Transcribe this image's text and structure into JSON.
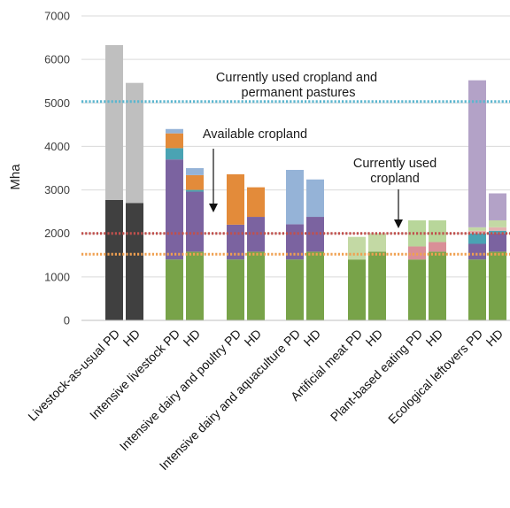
{
  "chart_data": {
    "type": "bar",
    "stacked": true,
    "ylabel": "Mha",
    "ylim": [
      0,
      7000
    ],
    "yticks": [
      0,
      1000,
      2000,
      3000,
      4000,
      5000,
      6000,
      7000
    ],
    "grid": true,
    "categories": [
      "Livestock-as-usual PD",
      "HD",
      "Intensive livestock PD",
      "HD",
      "Intensive dairy and poultry PD",
      "HD",
      "Intensive dairy and aquaculture PD",
      "HD",
      "Artificial meat PD",
      "HD",
      "Plant-based eating PD",
      "HD",
      "Ecological leftovers PD",
      "HD"
    ],
    "series": [
      {
        "color": "#404040",
        "values": [
          2770,
          2700,
          0,
          0,
          0,
          0,
          0,
          0,
          0,
          0,
          0,
          0,
          0,
          0
        ]
      },
      {
        "color": "#bfbfbf",
        "values": [
          3560,
          2760,
          0,
          0,
          0,
          0,
          0,
          0,
          0,
          0,
          0,
          0,
          0,
          0
        ]
      },
      {
        "color": "#78a349",
        "values": [
          0,
          0,
          1400,
          1580,
          1400,
          1580,
          1400,
          1580,
          1400,
          1580,
          1400,
          1580,
          1400,
          1580
        ]
      },
      {
        "color": "#c3d9a4",
        "values": [
          0,
          0,
          0,
          0,
          0,
          0,
          0,
          0,
          520,
          420,
          0,
          0,
          0,
          0
        ]
      },
      {
        "color": "#d98f97",
        "values": [
          0,
          0,
          0,
          0,
          0,
          0,
          0,
          0,
          0,
          0,
          300,
          220,
          0,
          0
        ]
      },
      {
        "color": "#b8d69a",
        "values": [
          0,
          0,
          0,
          0,
          0,
          0,
          0,
          0,
          0,
          0,
          600,
          500,
          0,
          0
        ]
      },
      {
        "color": "#7b63a0",
        "values": [
          0,
          0,
          2300,
          1380,
          800,
          800,
          810,
          800,
          0,
          0,
          0,
          0,
          360,
          420
        ]
      },
      {
        "color": "#4aa3b3",
        "values": [
          0,
          0,
          260,
          40,
          0,
          0,
          0,
          0,
          0,
          0,
          0,
          0,
          240,
          60
        ]
      },
      {
        "color": "#e38b3a",
        "values": [
          0,
          0,
          340,
          340,
          1160,
          680,
          0,
          0,
          0,
          0,
          0,
          0,
          0,
          0
        ]
      },
      {
        "color": "#95b3d7",
        "values": [
          0,
          0,
          100,
          160,
          0,
          0,
          1250,
          860,
          0,
          0,
          0,
          0,
          0,
          0
        ]
      },
      {
        "color": "#e3b0b0",
        "values": [
          0,
          0,
          0,
          0,
          0,
          0,
          0,
          0,
          0,
          0,
          0,
          0,
          60,
          80
        ]
      },
      {
        "color": "#c3d9a4",
        "values": [
          0,
          0,
          0,
          0,
          0,
          0,
          0,
          0,
          0,
          0,
          0,
          0,
          80,
          160
        ]
      },
      {
        "color": "#b3a2c7",
        "values": [
          0,
          0,
          0,
          0,
          0,
          0,
          0,
          0,
          0,
          0,
          0,
          0,
          3380,
          620
        ]
      }
    ],
    "reference_lines": [
      {
        "value": 5030,
        "color": "#5bb6cf",
        "label_lines": [
          "Currently used cropland and",
          "permanent pastures"
        ]
      },
      {
        "value": 2000,
        "color": "#c0504d",
        "label_lines": [
          "Available cropland"
        ]
      },
      {
        "value": 1520,
        "color": "#f0a050",
        "label_lines": [
          "Currently used",
          "cropland"
        ]
      }
    ]
  }
}
